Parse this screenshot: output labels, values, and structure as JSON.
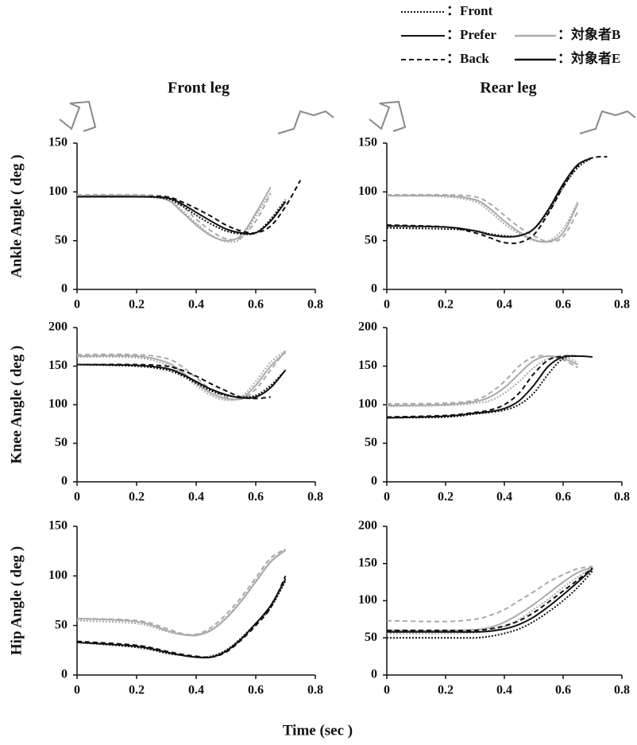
{
  "legend": {
    "styles": [
      {
        "label": "：Front",
        "dash": "2 2"
      },
      {
        "label": "：Prefer",
        "dash": ""
      },
      {
        "label": "：Back",
        "dash": "6 4"
      }
    ],
    "subjects": [
      {
        "label": "：対象者B",
        "color": "#aaaaaa"
      },
      {
        "label": "：対象者E",
        "color": "#111111"
      }
    ]
  },
  "column_titles": [
    "Front leg",
    "Rear leg"
  ],
  "xlabel": "Time (sec )",
  "chart_data": [
    {
      "type": "line",
      "ylabel": "Ankle Angle ( deg )",
      "x": [
        0,
        0.2,
        0.3,
        0.35,
        0.4,
        0.45,
        0.5,
        0.55,
        0.6,
        0.65,
        0.7,
        0.75
      ],
      "xlim": [
        0,
        0.8
      ],
      "xticks": [
        0,
        0.2,
        0.4,
        0.6,
        0.8
      ],
      "ylim": [
        0,
        150
      ],
      "yticks": [
        0,
        50,
        100,
        150
      ],
      "series": [
        {
          "color": "#aaaaaa",
          "dash": "2 2",
          "values": [
            96,
            96,
            93,
            82,
            68,
            56,
            49,
            52,
            75,
            100,
            null,
            null
          ]
        },
        {
          "color": "#aaaaaa",
          "dash": "",
          "values": [
            96,
            96,
            92,
            80,
            66,
            55,
            50,
            55,
            78,
            105,
            null,
            null
          ]
        },
        {
          "color": "#aaaaaa",
          "dash": "6 4",
          "values": [
            97,
            97,
            95,
            86,
            72,
            60,
            52,
            53,
            70,
            98,
            null,
            null
          ]
        },
        {
          "color": "#111111",
          "dash": "2 2",
          "values": [
            95,
            95,
            93,
            86,
            76,
            67,
            60,
            57,
            58,
            72,
            92,
            null
          ]
        },
        {
          "color": "#111111",
          "dash": "",
          "values": [
            95,
            95,
            94,
            88,
            79,
            70,
            62,
            58,
            58,
            70,
            90,
            null
          ]
        },
        {
          "color": "#111111",
          "dash": "6 4",
          "values": [
            95,
            95,
            95,
            90,
            83,
            75,
            66,
            60,
            58,
            65,
            85,
            112
          ]
        }
      ]
    },
    {
      "type": "line",
      "x": [
        0,
        0.2,
        0.3,
        0.35,
        0.4,
        0.45,
        0.5,
        0.55,
        0.6,
        0.65,
        0.7,
        0.75
      ],
      "xlim": [
        0,
        0.8
      ],
      "xticks": [
        0,
        0.2,
        0.4,
        0.6,
        0.8
      ],
      "ylim": [
        0,
        150
      ],
      "yticks": [
        0,
        50,
        100,
        150
      ],
      "series": [
        {
          "color": "#aaaaaa",
          "dash": "2 2",
          "values": [
            96,
            95,
            90,
            80,
            67,
            57,
            50,
            50,
            62,
            90,
            null,
            null
          ]
        },
        {
          "color": "#aaaaaa",
          "dash": "",
          "values": [
            96,
            96,
            92,
            83,
            70,
            59,
            51,
            49,
            58,
            88,
            null,
            null
          ]
        },
        {
          "color": "#aaaaaa",
          "dash": "6 4",
          "values": [
            97,
            97,
            95,
            88,
            76,
            64,
            55,
            49,
            54,
            80,
            null,
            null
          ]
        },
        {
          "color": "#111111",
          "dash": "2 2",
          "values": [
            63,
            62,
            60,
            57,
            55,
            55,
            62,
            80,
            105,
            125,
            135,
            null
          ]
        },
        {
          "color": "#111111",
          "dash": "",
          "values": [
            65,
            64,
            60,
            56,
            54,
            55,
            62,
            82,
            108,
            128,
            135,
            null
          ]
        },
        {
          "color": "#111111",
          "dash": "6 4",
          "values": [
            66,
            64,
            58,
            53,
            48,
            48,
            56,
            78,
            105,
            127,
            135,
            136
          ]
        }
      ]
    },
    {
      "type": "line",
      "ylabel": "Knee Angle ( deg )",
      "x": [
        0,
        0.2,
        0.3,
        0.35,
        0.4,
        0.45,
        0.5,
        0.55,
        0.6,
        0.65,
        0.7,
        0.75
      ],
      "xlim": [
        0,
        0.8
      ],
      "xticks": [
        0,
        0.2,
        0.4,
        0.6,
        0.8
      ],
      "ylim": [
        0,
        200
      ],
      "yticks": [
        0,
        50,
        100,
        150,
        200
      ],
      "series": [
        {
          "color": "#aaaaaa",
          "dash": "2 2",
          "values": [
            162,
            161,
            152,
            140,
            125,
            112,
            106,
            110,
            130,
            155,
            170,
            null
          ]
        },
        {
          "color": "#aaaaaa",
          "dash": "",
          "values": [
            163,
            163,
            155,
            143,
            128,
            115,
            108,
            108,
            125,
            150,
            168,
            null
          ]
        },
        {
          "color": "#aaaaaa",
          "dash": "6 4",
          "values": [
            165,
            165,
            160,
            150,
            135,
            120,
            110,
            107,
            120,
            145,
            170,
            null
          ]
        },
        {
          "color": "#111111",
          "dash": "2 2",
          "values": [
            152,
            150,
            145,
            138,
            128,
            118,
            112,
            110,
            112,
            125,
            145,
            null
          ]
        },
        {
          "color": "#111111",
          "dash": "",
          "values": [
            152,
            151,
            147,
            140,
            130,
            120,
            113,
            109,
            110,
            122,
            145,
            null
          ]
        },
        {
          "color": "#111111",
          "dash": "6 4",
          "values": [
            152,
            152,
            150,
            145,
            137,
            127,
            118,
            110,
            108,
            110,
            null,
            null
          ]
        }
      ]
    },
    {
      "type": "line",
      "x": [
        0,
        0.2,
        0.3,
        0.35,
        0.4,
        0.45,
        0.5,
        0.55,
        0.6,
        0.65,
        0.7,
        0.75
      ],
      "xlim": [
        0,
        0.8
      ],
      "xticks": [
        0,
        0.2,
        0.4,
        0.6,
        0.8
      ],
      "ylim": [
        0,
        200
      ],
      "yticks": [
        0,
        50,
        100,
        150,
        200
      ],
      "series": [
        {
          "color": "#aaaaaa",
          "dash": "2 2",
          "values": [
            98,
            99,
            102,
            105,
            115,
            130,
            148,
            160,
            162,
            155,
            null,
            null
          ]
        },
        {
          "color": "#aaaaaa",
          "dash": "",
          "values": [
            99,
            100,
            104,
            110,
            122,
            140,
            157,
            163,
            160,
            152,
            null,
            null
          ]
        },
        {
          "color": "#aaaaaa",
          "dash": "6 4",
          "values": [
            101,
            102,
            106,
            115,
            130,
            150,
            162,
            163,
            158,
            148,
            null,
            null
          ]
        },
        {
          "color": "#111111",
          "dash": "2 2",
          "values": [
            83,
            84,
            88,
            90,
            93,
            100,
            115,
            140,
            160,
            163,
            null,
            null
          ]
        },
        {
          "color": "#111111",
          "dash": "",
          "values": [
            83,
            85,
            89,
            91,
            95,
            105,
            125,
            150,
            162,
            163,
            162,
            null
          ]
        },
        {
          "color": "#111111",
          "dash": "6 4",
          "values": [
            84,
            86,
            90,
            93,
            100,
            115,
            140,
            158,
            163,
            163,
            null,
            null
          ]
        }
      ]
    },
    {
      "type": "line",
      "ylabel": "Hip Angle ( deg )",
      "x": [
        0,
        0.2,
        0.3,
        0.35,
        0.4,
        0.45,
        0.5,
        0.55,
        0.6,
        0.65,
        0.7,
        0.75
      ],
      "xlim": [
        0,
        0.8
      ],
      "xticks": [
        0,
        0.2,
        0.4,
        0.6,
        0.8
      ],
      "ylim": [
        0,
        150
      ],
      "yticks": [
        0,
        50,
        100,
        150
      ],
      "series": [
        {
          "color": "#aaaaaa",
          "dash": "2 2",
          "values": [
            55,
            52,
            44,
            41,
            41,
            46,
            58,
            75,
            95,
            115,
            127,
            null
          ]
        },
        {
          "color": "#aaaaaa",
          "dash": "",
          "values": [
            57,
            54,
            45,
            41,
            40,
            45,
            57,
            74,
            94,
            114,
            126,
            null
          ]
        },
        {
          "color": "#aaaaaa",
          "dash": "6 4",
          "values": [
            57,
            55,
            47,
            42,
            41,
            48,
            61,
            78,
            98,
            118,
            127,
            null
          ]
        },
        {
          "color": "#111111",
          "dash": "2 2",
          "values": [
            33,
            28,
            22,
            20,
            18,
            19,
            25,
            37,
            52,
            68,
            95,
            null
          ]
        },
        {
          "color": "#111111",
          "dash": "",
          "values": [
            33,
            29,
            23,
            20,
            18,
            18,
            24,
            36,
            52,
            70,
            97,
            null
          ]
        },
        {
          "color": "#111111",
          "dash": "6 4",
          "values": [
            34,
            30,
            24,
            21,
            19,
            18,
            23,
            35,
            50,
            68,
            100,
            null
          ]
        }
      ]
    },
    {
      "type": "line",
      "x": [
        0,
        0.2,
        0.3,
        0.35,
        0.4,
        0.45,
        0.5,
        0.55,
        0.6,
        0.65,
        0.7,
        0.75
      ],
      "xlim": [
        0,
        0.8
      ],
      "xticks": [
        0,
        0.2,
        0.4,
        0.6,
        0.8
      ],
      "ylim": [
        0,
        200
      ],
      "yticks": [
        0,
        50,
        100,
        150,
        200
      ],
      "series": [
        {
          "color": "#aaaaaa",
          "dash": "2 2",
          "values": [
            56,
            56,
            57,
            60,
            65,
            75,
            88,
            102,
            118,
            132,
            145,
            null
          ]
        },
        {
          "color": "#aaaaaa",
          "dash": "",
          "values": [
            60,
            60,
            61,
            64,
            71,
            82,
            95,
            110,
            125,
            138,
            145,
            null
          ]
        },
        {
          "color": "#aaaaaa",
          "dash": "6 4",
          "values": [
            73,
            72,
            75,
            80,
            88,
            100,
            112,
            125,
            135,
            143,
            146,
            null
          ]
        },
        {
          "color": "#111111",
          "dash": "2 2",
          "values": [
            50,
            50,
            50,
            52,
            56,
            62,
            72,
            85,
            100,
            118,
            140,
            null
          ]
        },
        {
          "color": "#111111",
          "dash": "",
          "values": [
            58,
            58,
            58,
            59,
            62,
            68,
            78,
            92,
            108,
            125,
            143,
            null
          ]
        },
        {
          "color": "#111111",
          "dash": "6 4",
          "values": [
            60,
            60,
            60,
            62,
            66,
            73,
            84,
            98,
            113,
            128,
            144,
            null
          ]
        }
      ]
    }
  ]
}
